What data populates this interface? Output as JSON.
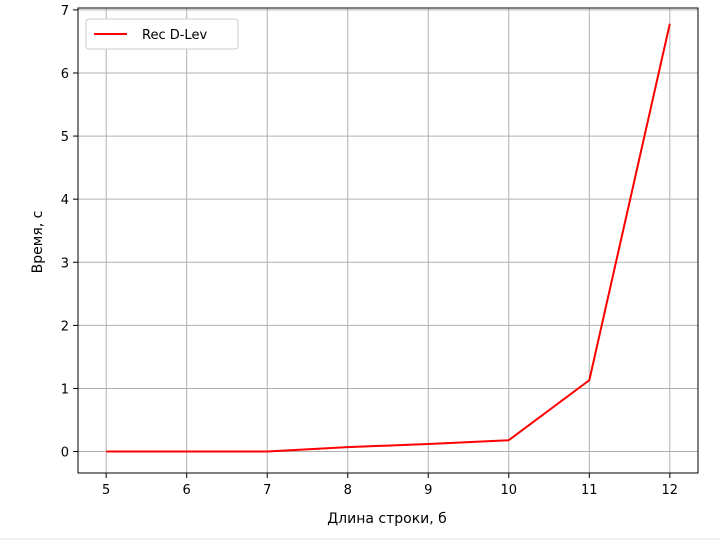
{
  "chart_data": {
    "type": "line",
    "title": "",
    "xlabel": "Длина строки, б",
    "ylabel": "Время, с",
    "x": [
      5,
      7,
      8,
      9,
      10,
      11,
      12
    ],
    "series": [
      {
        "name": "Rec D-Lev",
        "color": "#ff0000",
        "values": [
          0.0,
          0.0,
          0.07,
          0.12,
          0.18,
          1.13,
          6.78
        ]
      }
    ],
    "xlim": [
      4.65,
      12.35
    ],
    "ylim": [
      -0.34,
      7.03
    ],
    "xticks": [
      5,
      6,
      7,
      8,
      9,
      10,
      11,
      12
    ],
    "yticks": [
      0,
      1,
      2,
      3,
      4,
      5,
      6,
      7
    ],
    "grid": true,
    "legend_position": "top-left"
  }
}
